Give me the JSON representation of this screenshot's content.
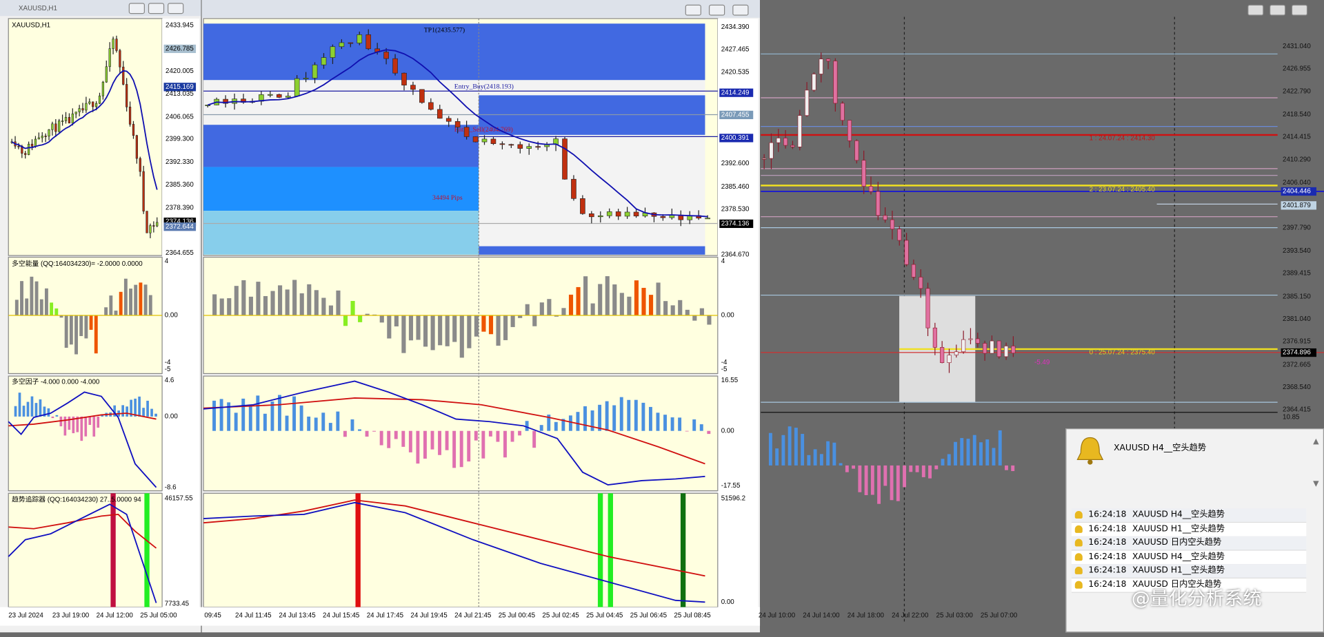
{
  "left_window": {
    "title": "XAUUSD,H1",
    "chart_label": "XAUUSD,H1",
    "price_axis": [
      "2433.945",
      "2426.785",
      "2420.005",
      "2415.169",
      "2413.035",
      "2406.065",
      "2399.300",
      "2392.330",
      "2385.360",
      "2378.390",
      "2374.136",
      "2372.644",
      "2364.655"
    ],
    "time_axis": [
      "23 Jul 2024",
      "23 Jul 19:00",
      "24 Jul 12:00",
      "25 Jul 05:00"
    ],
    "indicators": [
      {
        "label": "多空能量 (QQ:164034230)= -2.0000 0.0000",
        "scale": [
          "4",
          "0.00",
          "-4",
          "-5"
        ]
      },
      {
        "label": "多空因子 -4.000 0.000 -4.000",
        "scale": [
          "4.6",
          "0.00",
          "-8.6"
        ]
      },
      {
        "label": "趋势追踪器 (QQ:164034230)  27..5.0000 94",
        "scale": [
          "46157.55",
          "7733.45"
        ]
      }
    ]
  },
  "middle_window": {
    "price_axis": [
      "2434.390",
      "2427.465",
      "2420.535",
      "2414.249",
      "2407.455",
      "2400.391",
      "2392.600",
      "2385.460",
      "2378.530",
      "2374.136",
      "2364.670"
    ],
    "time_axis": [
      "09:45",
      "24 Jul 11:45",
      "24 Jul 13:45",
      "24 Jul 15:45",
      "24 Jul 17:45",
      "24 Jul 19:45",
      "24 Jul 21:45",
      "25 Jul 00:45",
      "25 Jul 02:45",
      "25 Jul 04:45",
      "25 Jul 06:45",
      "25 Jul 08:45"
    ],
    "annotations": {
      "tp1": "TP1(2435.577)",
      "entry_buy": "Entry_Buy(2418.193)",
      "entry_sell": "Entry_Sell(2404.769)",
      "pips": "34494 Pips"
    },
    "indicator_scales": [
      [
        "4",
        "0.00",
        "-4",
        "-5"
      ],
      [
        "16.55",
        "0.00",
        "-17.55"
      ],
      [
        "51596.2",
        "0.00"
      ]
    ]
  },
  "right_window": {
    "price_axis": [
      "2431.040",
      "2426.955",
      "2422.790",
      "2418.540",
      "2414.415",
      "2410.290",
      "2406.040",
      "2404.446",
      "2401.879",
      "2397.790",
      "2393.540",
      "2389.415",
      "2385.150",
      "2381.040",
      "2376.915",
      "2374.896",
      "2372.665",
      "2368.540",
      "2364.415"
    ],
    "histogram_scale": "10.85",
    "time_axis": [
      "24 Jul 10:00",
      "24 Jul 14:00",
      "24 Jul 18:00",
      "24 Jul 22:00",
      "25 Jul 03:00",
      "25 Jul 07:00"
    ],
    "levels": [
      "1 : 24.07.24 : 2414.30",
      "2 : 23.07.24 : 2405.40",
      "0 : 25.07.24 : 2375.40"
    ],
    "profit": "-5.49"
  },
  "alert_panel": {
    "title": "XAUUSD  H4__空头趋势",
    "rows": [
      {
        "time": "16:24:18",
        "message": "XAUUSD  H4__空头趋势"
      },
      {
        "time": "16:24:18",
        "message": "XAUUSD  H1__空头趋势"
      },
      {
        "time": "16:24:18",
        "message": "XAUUSD  日内空头趋势"
      },
      {
        "time": "16:24:18",
        "message": "XAUUSD  H4__空头趋势"
      },
      {
        "time": "16:24:18",
        "message": "XAUUSD  H1__空头趋势"
      },
      {
        "time": "16:24:18",
        "message": "XAUUSD  日内空头趋势"
      }
    ]
  },
  "watermark": "@量化分析系统"
}
